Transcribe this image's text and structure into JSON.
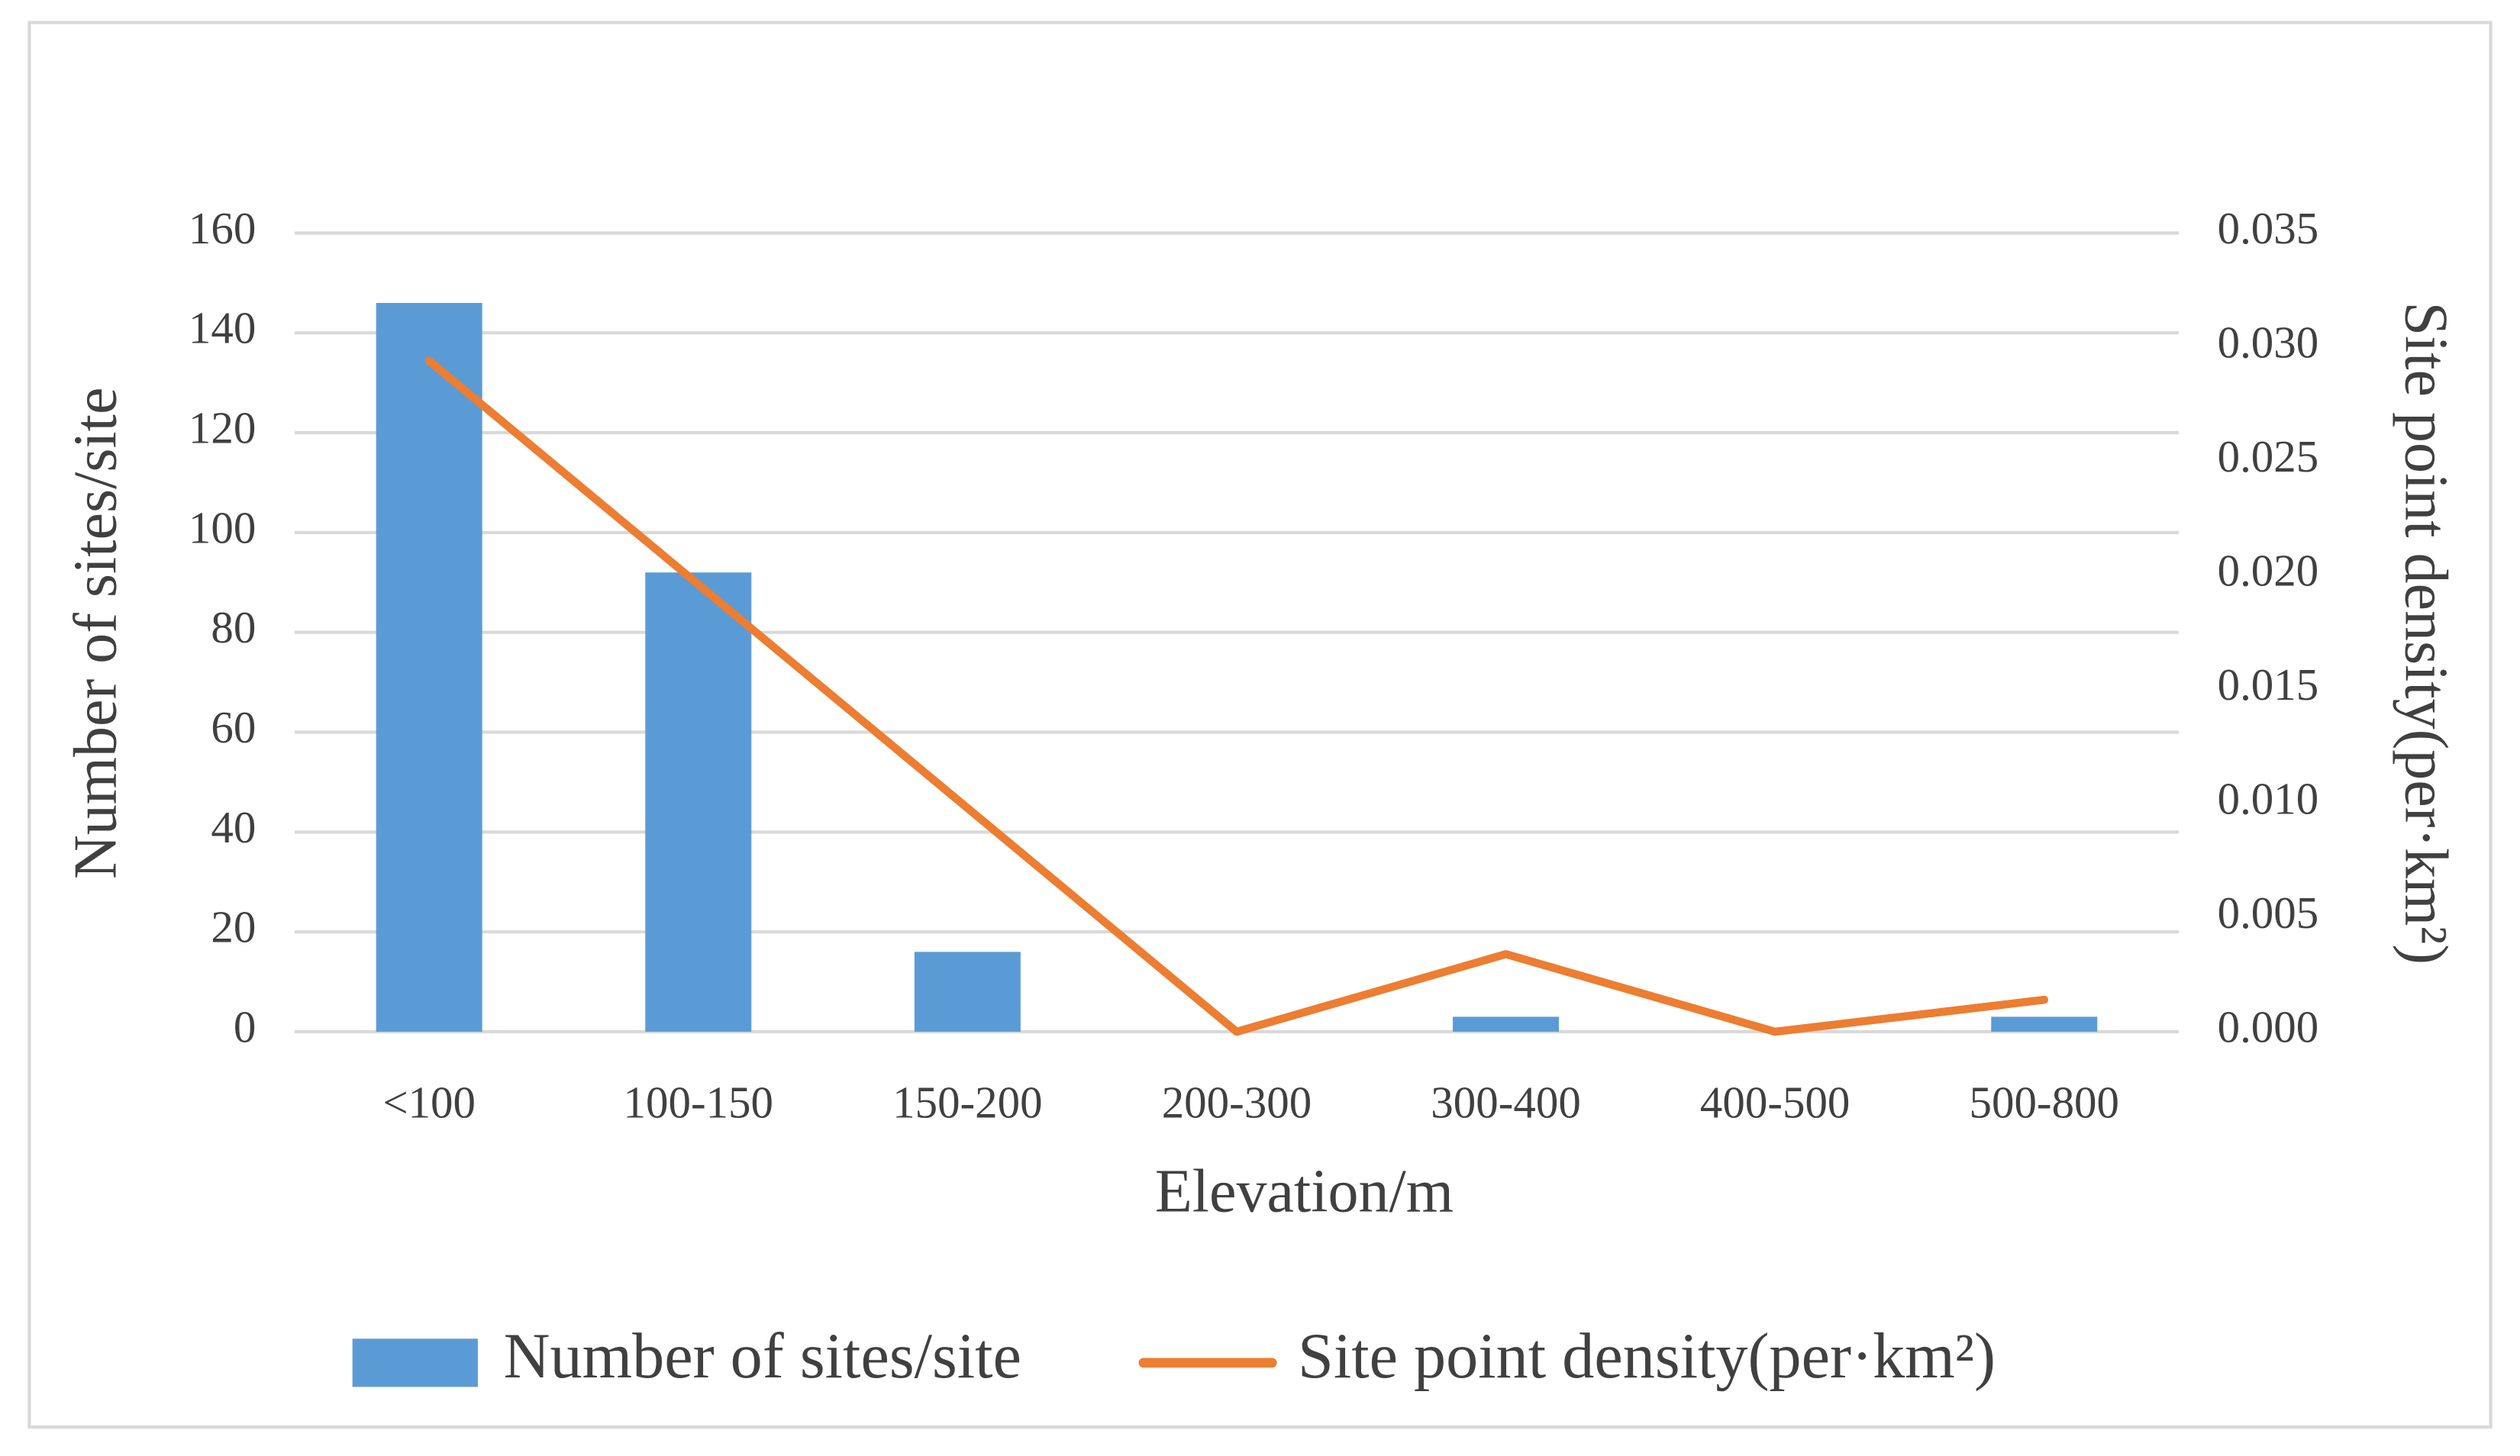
{
  "chart_data": {
    "type": "bar",
    "categories": [
      "<100",
      "100-150",
      "150-200",
      "200-300",
      "300-400",
      "400-500",
      "500-800"
    ],
    "series": [
      {
        "name": "Number of sites/site",
        "color": "#5b9bd5",
        "type": "bar",
        "values": [
          146,
          92,
          16,
          0,
          3,
          0,
          3
        ]
      },
      {
        "name": "Site point density(per·km²)",
        "color": "#ed7d31",
        "type": "line",
        "axis": "y2",
        "values": [
          0.0294,
          0.0196,
          0.0098,
          0,
          0.0034,
          0,
          0.0014
        ]
      }
    ],
    "x_label": "Elevation/m",
    "y_label": "Number of sites/site",
    "y2_label": "Site point density(per·km²)",
    "ylim": [
      0,
      160
    ],
    "yticks": [
      0,
      20,
      40,
      60,
      80,
      100,
      120,
      140,
      160
    ],
    "y2lim": [
      0,
      0.035
    ],
    "y2ticks": [
      {
        "value": 0,
        "label": "0.000"
      },
      {
        "value": 0.005,
        "label": "0.005"
      },
      {
        "value": 0.01,
        "label": "0.010"
      },
      {
        "value": 0.015,
        "label": "0.015"
      },
      {
        "value": 0.02,
        "label": "0.020"
      },
      {
        "value": 0.025,
        "label": "0.025"
      },
      {
        "value": 0.03,
        "label": "0.030"
      },
      {
        "value": 0.035,
        "label": "0.035"
      }
    ],
    "grid": true,
    "legend": "bottom"
  }
}
